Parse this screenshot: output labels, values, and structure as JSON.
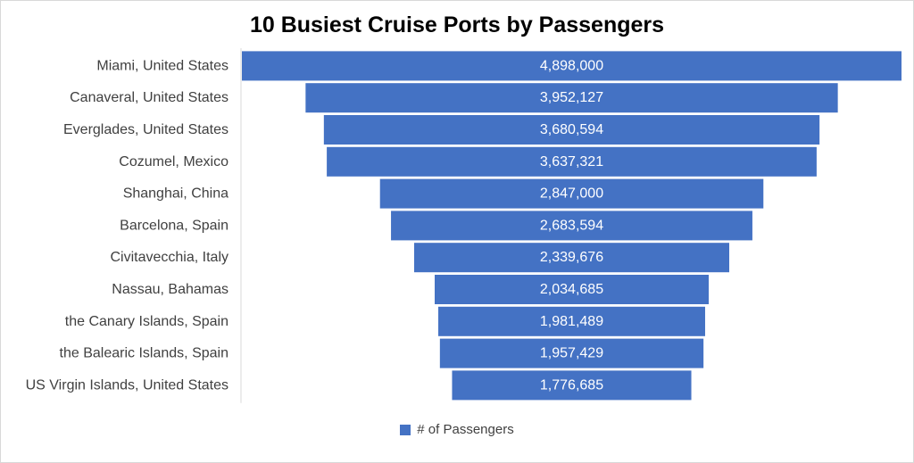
{
  "chart_data": {
    "type": "bar",
    "subtype": "funnel",
    "title": "10 Busiest Cruise Ports by Passengers",
    "categories": [
      "Miami, United States",
      "Canaveral, United States",
      "Everglades, United States",
      "Cozumel, Mexico",
      "Shanghai, China",
      "Barcelona, Spain",
      "Civitavecchia, Italy",
      "Nassau, Bahamas",
      "the Canary Islands, Spain",
      "the Balearic Islands, Spain",
      "US Virgin Islands, United States"
    ],
    "series": [
      {
        "name": "# of Passengers",
        "values": [
          4898000,
          3952127,
          3680594,
          3637321,
          2847000,
          2683594,
          2339676,
          2034685,
          1981489,
          1957429,
          1776685
        ],
        "data_labels": [
          "4,898,000",
          "3,952,127",
          "3,680,594",
          "3,637,321",
          "2,847,000",
          "2,683,594",
          "2,339,676",
          "2,034,685",
          "1,981,489",
          "1,957,429",
          "1,776,685"
        ]
      }
    ],
    "legend": {
      "position": "bottom"
    },
    "grid": false,
    "colors": {
      "bar": "#4472c4",
      "label_text": "#404040",
      "value_text": "#ffffff",
      "axis_line": "#d9d9d9"
    }
  }
}
